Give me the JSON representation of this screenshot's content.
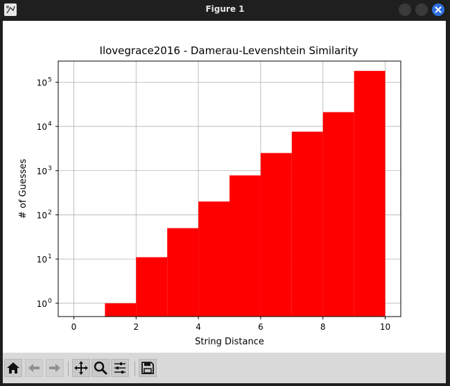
{
  "window": {
    "title": "Figure 1"
  },
  "toolbar": {
    "buttons": [
      "home-icon",
      "back-icon",
      "forward-icon",
      "pan-icon",
      "zoom-icon",
      "configure-subplots-icon",
      "save-icon"
    ]
  },
  "colors": {
    "bar": "#ff0000",
    "grid": "#b0b0b0",
    "titlebar": "#1f1f1f",
    "close_button": "#2f6fe0",
    "toolbar": "#d9d9d9"
  },
  "chart_data": {
    "type": "bar",
    "title": "Ilovegrace2016 - Damerau-Levenshtein Similarity",
    "xlabel": "String Distance",
    "ylabel": "# of Guesses",
    "yscale": "log",
    "grid": true,
    "xlim": [
      -0.5,
      10.5
    ],
    "ylim": [
      0.5,
      300000
    ],
    "x_ticks": [
      0,
      2,
      4,
      6,
      8,
      10
    ],
    "y_ticks": [
      {
        "value": 1,
        "base": "10",
        "exp": "0"
      },
      {
        "value": 10,
        "base": "10",
        "exp": "1"
      },
      {
        "value": 100,
        "base": "10",
        "exp": "2"
      },
      {
        "value": 1000,
        "base": "10",
        "exp": "3"
      },
      {
        "value": 10000,
        "base": "10",
        "exp": "4"
      },
      {
        "value": 100000,
        "base": "10",
        "exp": "5"
      }
    ],
    "bins": [
      {
        "start": 1,
        "end": 2,
        "value": 1
      },
      {
        "start": 2,
        "end": 3,
        "value": 11
      },
      {
        "start": 3,
        "end": 4,
        "value": 50
      },
      {
        "start": 4,
        "end": 5,
        "value": 200
      },
      {
        "start": 5,
        "end": 6,
        "value": 780
      },
      {
        "start": 6,
        "end": 7,
        "value": 2500
      },
      {
        "start": 7,
        "end": 8,
        "value": 7600
      },
      {
        "start": 8,
        "end": 9,
        "value": 21000
      },
      {
        "start": 9,
        "end": 10,
        "value": 180000
      }
    ]
  }
}
